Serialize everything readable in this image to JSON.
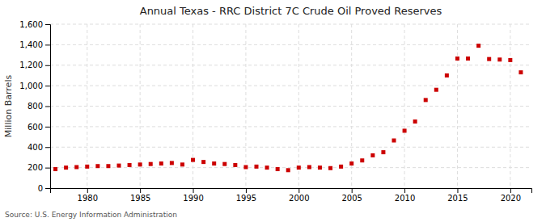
{
  "chart_data": {
    "type": "scatter",
    "title": "Annual Texas - RRC District 7C Crude Oil Proved Reserves",
    "y_label": "Million Barrels",
    "annotation": "Source: U.S. Energy Information Administration",
    "x": [
      1977,
      1978,
      1979,
      1980,
      1981,
      1982,
      1983,
      1984,
      1985,
      1986,
      1987,
      1988,
      1989,
      1990,
      1991,
      1992,
      1993,
      1994,
      1995,
      1996,
      1997,
      1998,
      1999,
      2000,
      2001,
      2002,
      2003,
      2004,
      2005,
      2006,
      2007,
      2008,
      2009,
      2010,
      2011,
      2012,
      2013,
      2014,
      2015,
      2016,
      2017,
      2018,
      2019,
      2020,
      2021
    ],
    "values": [
      185,
      200,
      205,
      210,
      215,
      215,
      220,
      225,
      230,
      235,
      240,
      245,
      230,
      275,
      255,
      240,
      235,
      225,
      205,
      210,
      200,
      185,
      175,
      200,
      205,
      200,
      195,
      210,
      240,
      270,
      320,
      350,
      465,
      560,
      650,
      860,
      960,
      1100,
      1265,
      1265,
      1390,
      1260,
      1255,
      1250,
      1130
    ],
    "color": "#cc0000",
    "marker": "square",
    "xlim": [
      1976.5,
      2022
    ],
    "xticks": [
      1980,
      1985,
      1990,
      1995,
      2000,
      2005,
      2010,
      2015,
      2020
    ],
    "ylim": [
      0,
      1600
    ],
    "yticks": [
      0,
      200,
      400,
      600,
      800,
      {
        "value": 1000,
        "label": "1,000"
      },
      {
        "value": 1200,
        "label": "1,200"
      },
      {
        "value": 1400,
        "label": "1,400"
      },
      {
        "value": 1600,
        "label": "1,600"
      }
    ],
    "grid": true
  }
}
